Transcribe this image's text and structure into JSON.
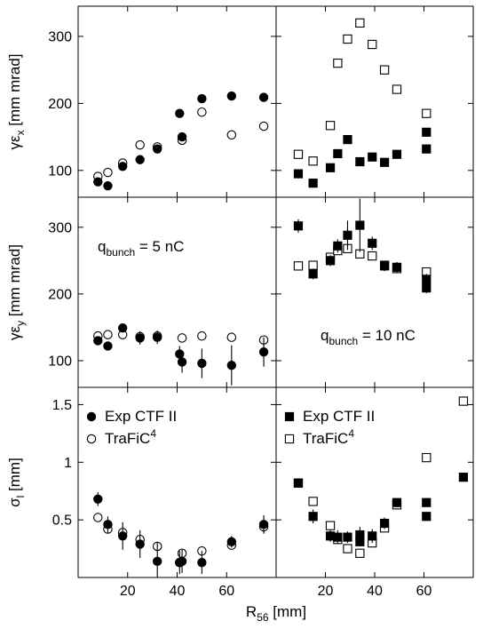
{
  "chart_data": {
    "type": "scatter",
    "x_label": {
      "main": "R",
      "sub": "56",
      "tail": " [mm]"
    },
    "x_range": [
      0,
      80
    ],
    "x_ticks": [
      20,
      40,
      60
    ],
    "rows": [
      {
        "y_label": {
          "main": "γε",
          "sub": "x",
          "tail": " [mm mrad]"
        },
        "y_range": [
          60,
          345
        ],
        "y_ticks": [
          100,
          200,
          300
        ]
      },
      {
        "y_label": {
          "main": "γε",
          "sub": "y",
          "tail": " [mm mrad]"
        },
        "y_range": [
          60,
          345
        ],
        "y_ticks": [
          100,
          200,
          300
        ]
      },
      {
        "y_label": {
          "main": "σ",
          "sub": "l",
          "tail": " [mm]"
        },
        "y_range": [
          0,
          1.65
        ],
        "y_ticks": [
          0.5,
          1,
          1.5
        ],
        "y_tick_labels": [
          "0.5",
          "1",
          "1.5"
        ]
      }
    ],
    "columns": [
      {
        "charge_label": {
          "main": "q",
          "sub": "bunch",
          "tail": " = 5 nC"
        },
        "marker": "circle",
        "legend": {
          "experiment": "Exp CTF II",
          "simulation_main": "TraFiC",
          "simulation_sup": "4"
        },
        "experiment": [
          [
            {
              "x": 8,
              "y": 83
            },
            {
              "x": 12,
              "y": 77
            },
            {
              "x": 18,
              "y": 106
            },
            {
              "x": 25,
              "y": 116
            },
            {
              "x": 32,
              "y": 132
            },
            {
              "x": 41,
              "y": 185
            },
            {
              "x": 42,
              "y": 150
            },
            {
              "x": 50,
              "y": 207
            },
            {
              "x": 62,
              "y": 211
            },
            {
              "x": 75,
              "y": 209
            }
          ],
          [
            {
              "x": 8,
              "y": 130,
              "err": 6
            },
            {
              "x": 12,
              "y": 122,
              "err": 6
            },
            {
              "x": 18,
              "y": 149,
              "err": 6
            },
            {
              "x": 25,
              "y": 134,
              "err": 10
            },
            {
              "x": 32,
              "y": 135,
              "err": 10
            },
            {
              "x": 41,
              "y": 110,
              "err": 12
            },
            {
              "x": 42,
              "y": 98,
              "err": 16
            },
            {
              "x": 50,
              "y": 96,
              "err": 22
            },
            {
              "x": 62,
              "y": 93,
              "err": 30
            },
            {
              "x": 75,
              "y": 113,
              "err": 22
            }
          ],
          [
            {
              "x": 8,
              "y": 0.68,
              "err": 0.06
            },
            {
              "x": 12,
              "y": 0.46,
              "err": 0.07
            },
            {
              "x": 18,
              "y": 0.36,
              "err": 0.12
            },
            {
              "x": 25,
              "y": 0.29,
              "err": 0.12
            },
            {
              "x": 32,
              "y": 0.14,
              "err": 0.17
            },
            {
              "x": 41,
              "y": 0.13,
              "err": 0.1
            },
            {
              "x": 42,
              "y": 0.14,
              "err": 0.1
            },
            {
              "x": 50,
              "y": 0.13,
              "err": 0.1
            },
            {
              "x": 62,
              "y": 0.31,
              "err": 0.05
            },
            {
              "x": 75,
              "y": 0.46,
              "err": 0.08
            }
          ]
        ],
        "simulation": [
          [
            {
              "x": 8,
              "y": 91
            },
            {
              "x": 12,
              "y": 97
            },
            {
              "x": 18,
              "y": 111
            },
            {
              "x": 25,
              "y": 138
            },
            {
              "x": 32,
              "y": 135
            },
            {
              "x": 42,
              "y": 145
            },
            {
              "x": 50,
              "y": 187
            },
            {
              "x": 62,
              "y": 153
            },
            {
              "x": 75,
              "y": 166
            }
          ],
          [
            {
              "x": 8,
              "y": 137
            },
            {
              "x": 12,
              "y": 139
            },
            {
              "x": 18,
              "y": 139
            },
            {
              "x": 25,
              "y": 136
            },
            {
              "x": 32,
              "y": 137
            },
            {
              "x": 42,
              "y": 134
            },
            {
              "x": 50,
              "y": 137
            },
            {
              "x": 62,
              "y": 135
            },
            {
              "x": 75,
              "y": 131
            }
          ],
          [
            {
              "x": 8,
              "y": 0.52
            },
            {
              "x": 12,
              "y": 0.42
            },
            {
              "x": 18,
              "y": 0.39
            },
            {
              "x": 25,
              "y": 0.33
            },
            {
              "x": 32,
              "y": 0.27
            },
            {
              "x": 41,
              "y": 0.13
            },
            {
              "x": 42,
              "y": 0.21
            },
            {
              "x": 50,
              "y": 0.23
            },
            {
              "x": 62,
              "y": 0.28
            },
            {
              "x": 75,
              "y": 0.44
            }
          ]
        ]
      },
      {
        "charge_label": {
          "main": "q",
          "sub": "bunch",
          "tail": " = 10 nC"
        },
        "marker": "square",
        "legend": {
          "experiment": "Exp CTF II",
          "simulation_main": "TraFiC",
          "simulation_sup": "4"
        },
        "experiment": [
          [
            {
              "x": 9,
              "y": 95
            },
            {
              "x": 15,
              "y": 81
            },
            {
              "x": 22,
              "y": 104
            },
            {
              "x": 25,
              "y": 125
            },
            {
              "x": 29,
              "y": 146
            },
            {
              "x": 34,
              "y": 113
            },
            {
              "x": 39,
              "y": 120
            },
            {
              "x": 44,
              "y": 112
            },
            {
              "x": 49,
              "y": 124
            },
            {
              "x": 61,
              "y": 157
            },
            {
              "x": 61,
              "y": 132
            }
          ],
          [
            {
              "x": 9,
              "y": 302,
              "err": 10
            },
            {
              "x": 15,
              "y": 230,
              "err": 8
            },
            {
              "x": 22,
              "y": 250,
              "err": 8
            },
            {
              "x": 25,
              "y": 272,
              "err": 10
            },
            {
              "x": 29,
              "y": 288,
              "err": 22
            },
            {
              "x": 34,
              "y": 303,
              "err": 40
            },
            {
              "x": 39,
              "y": 276,
              "err": 10
            },
            {
              "x": 44,
              "y": 242,
              "err": 8
            },
            {
              "x": 49,
              "y": 240,
              "err": 8
            },
            {
              "x": 61,
              "y": 222,
              "err": 8
            },
            {
              "x": 61,
              "y": 209,
              "err": 8
            }
          ],
          [
            {
              "x": 9,
              "y": 0.82,
              "err": 0.04
            },
            {
              "x": 15,
              "y": 0.53,
              "err": 0.06
            },
            {
              "x": 22,
              "y": 0.36,
              "err": 0.05
            },
            {
              "x": 25,
              "y": 0.35,
              "err": 0.06
            },
            {
              "x": 29,
              "y": 0.35,
              "err": 0.05
            },
            {
              "x": 34,
              "y": 0.37,
              "err": 0.07
            },
            {
              "x": 34,
              "y": 0.31,
              "err": 0.04
            },
            {
              "x": 39,
              "y": 0.36,
              "err": 0.06
            },
            {
              "x": 44,
              "y": 0.47,
              "err": 0.05
            },
            {
              "x": 49,
              "y": 0.65,
              "err": 0.03
            },
            {
              "x": 61,
              "y": 0.65,
              "err": 0.02
            },
            {
              "x": 61,
              "y": 0.53,
              "err": 0.02
            },
            {
              "x": 76,
              "y": 0.87,
              "err": 0.02
            }
          ]
        ],
        "simulation": [
          [
            {
              "x": 9,
              "y": 124
            },
            {
              "x": 15,
              "y": 114
            },
            {
              "x": 22,
              "y": 167
            },
            {
              "x": 25,
              "y": 260
            },
            {
              "x": 29,
              "y": 296
            },
            {
              "x": 34,
              "y": 320
            },
            {
              "x": 39,
              "y": 288
            },
            {
              "x": 44,
              "y": 250
            },
            {
              "x": 49,
              "y": 221
            },
            {
              "x": 61,
              "y": 185
            }
          ],
          [
            {
              "x": 9,
              "y": 242
            },
            {
              "x": 15,
              "y": 243
            },
            {
              "x": 22,
              "y": 255
            },
            {
              "x": 25,
              "y": 265
            },
            {
              "x": 29,
              "y": 268
            },
            {
              "x": 34,
              "y": 260
            },
            {
              "x": 39,
              "y": 257
            },
            {
              "x": 44,
              "y": 243
            },
            {
              "x": 49,
              "y": 238
            },
            {
              "x": 61,
              "y": 233
            }
          ],
          [
            {
              "x": 9,
              "y": 0.82
            },
            {
              "x": 15,
              "y": 0.66
            },
            {
              "x": 22,
              "y": 0.45
            },
            {
              "x": 25,
              "y": 0.33
            },
            {
              "x": 29,
              "y": 0.25
            },
            {
              "x": 34,
              "y": 0.21
            },
            {
              "x": 39,
              "y": 0.3
            },
            {
              "x": 44,
              "y": 0.43
            },
            {
              "x": 49,
              "y": 0.63
            },
            {
              "x": 61,
              "y": 1.04
            },
            {
              "x": 76,
              "y": 1.53
            }
          ]
        ]
      }
    ]
  }
}
